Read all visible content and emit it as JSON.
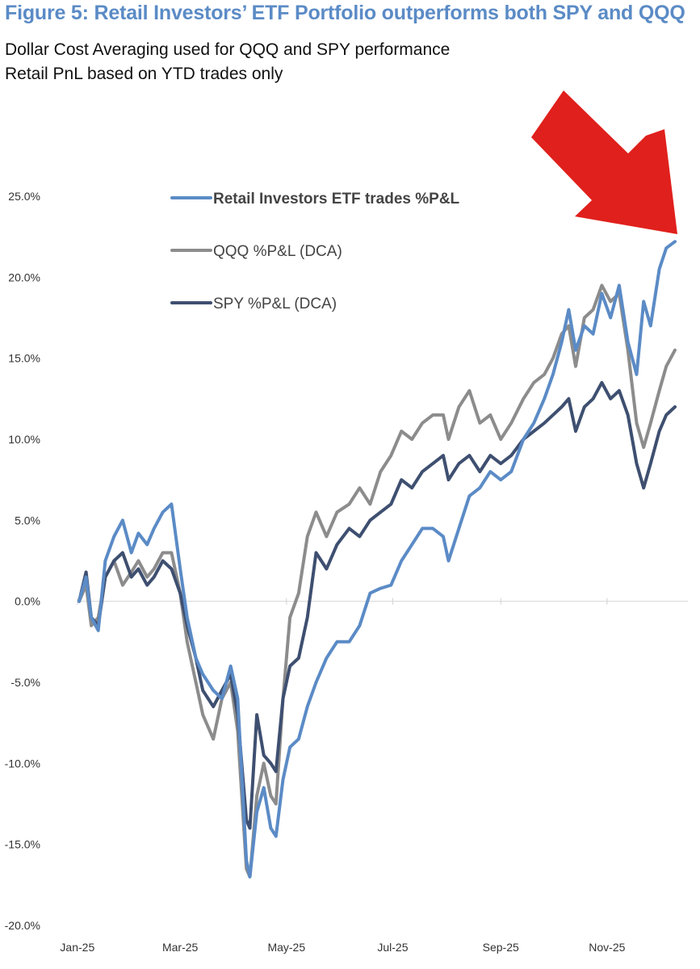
{
  "chart_data": {
    "type": "line",
    "title": "Figure 5: Retail Investors’ ETF Portfolio outperforms both SPY and QQQ",
    "subtitle": [
      "Dollar Cost Averaging used for QQQ and SPY performance",
      "Retail PnL based on YTD trades only"
    ],
    "xlabel": "",
    "ylabel": "",
    "x_ticks": [
      "Jan-25",
      "Mar-25",
      "May-25",
      "Jul-25",
      "Sep-25",
      "Nov-25"
    ],
    "y_ticks": [
      "25.0%",
      "20.0%",
      "15.0%",
      "10.0%",
      "5.0%",
      "0.0%",
      "-5.0%",
      "-10.0%",
      "-15.0%",
      "-20.0%"
    ],
    "ylim": [
      -20,
      25
    ],
    "xlim": [
      "2025-01-02",
      "2025-12-10"
    ],
    "legend_position": "top-left",
    "grid": false,
    "series": [
      {
        "name": "Retail Investors ETF trades %P&L",
        "color": "#5b8bc6",
        "points": [
          [
            "2025-01-02",
            0
          ],
          [
            "2025-01-06",
            1.5
          ],
          [
            "2025-01-09",
            -1.0
          ],
          [
            "2025-01-13",
            -1.8
          ],
          [
            "2025-01-17",
            2.5
          ],
          [
            "2025-01-22",
            4.0
          ],
          [
            "2025-01-27",
            5.0
          ],
          [
            "2025-02-01",
            3.0
          ],
          [
            "2025-02-05",
            4.2
          ],
          [
            "2025-02-10",
            3.5
          ],
          [
            "2025-02-14",
            4.5
          ],
          [
            "2025-02-19",
            5.5
          ],
          [
            "2025-02-24",
            6.0
          ],
          [
            "2025-03-01",
            2.0
          ],
          [
            "2025-03-05",
            -1.0
          ],
          [
            "2025-03-10",
            -3.5
          ],
          [
            "2025-03-14",
            -4.5
          ],
          [
            "2025-03-20",
            -5.5
          ],
          [
            "2025-03-25",
            -6.0
          ],
          [
            "2025-03-30",
            -4.0
          ],
          [
            "2025-04-03",
            -6.0
          ],
          [
            "2025-04-08",
            -16.0
          ],
          [
            "2025-04-10",
            -17.0
          ],
          [
            "2025-04-14",
            -13.0
          ],
          [
            "2025-04-18",
            -11.5
          ],
          [
            "2025-04-22",
            -14.0
          ],
          [
            "2025-04-25",
            -14.5
          ],
          [
            "2025-04-29",
            -11.0
          ],
          [
            "2025-05-03",
            -9.0
          ],
          [
            "2025-05-08",
            -8.5
          ],
          [
            "2025-05-13",
            -6.5
          ],
          [
            "2025-05-18",
            -5.0
          ],
          [
            "2025-05-24",
            -3.5
          ],
          [
            "2025-05-30",
            -2.5
          ],
          [
            "2025-06-06",
            -2.5
          ],
          [
            "2025-06-12",
            -1.5
          ],
          [
            "2025-06-18",
            0.5
          ],
          [
            "2025-06-24",
            0.8
          ],
          [
            "2025-06-30",
            1.0
          ],
          [
            "2025-07-06",
            2.5
          ],
          [
            "2025-07-12",
            3.5
          ],
          [
            "2025-07-18",
            4.5
          ],
          [
            "2025-07-24",
            4.5
          ],
          [
            "2025-07-30",
            4.0
          ],
          [
            "2025-08-02",
            2.5
          ],
          [
            "2025-08-08",
            4.5
          ],
          [
            "2025-08-14",
            6.5
          ],
          [
            "2025-08-20",
            7.0
          ],
          [
            "2025-08-26",
            8.0
          ],
          [
            "2025-09-01",
            7.5
          ],
          [
            "2025-09-07",
            8.0
          ],
          [
            "2025-09-14",
            10.0
          ],
          [
            "2025-09-20",
            11.0
          ],
          [
            "2025-09-26",
            12.5
          ],
          [
            "2025-10-01",
            14.0
          ],
          [
            "2025-10-06",
            16.0
          ],
          [
            "2025-10-10",
            18.0
          ],
          [
            "2025-10-14",
            15.5
          ],
          [
            "2025-10-19",
            17.0
          ],
          [
            "2025-10-24",
            16.5
          ],
          [
            "2025-10-29",
            19.0
          ],
          [
            "2025-11-03",
            17.5
          ],
          [
            "2025-11-08",
            19.5
          ],
          [
            "2025-11-13",
            16.0
          ],
          [
            "2025-11-18",
            14.0
          ],
          [
            "2025-11-22",
            18.5
          ],
          [
            "2025-11-26",
            17.0
          ],
          [
            "2025-12-01",
            20.5
          ],
          [
            "2025-12-05",
            21.8
          ],
          [
            "2025-12-10",
            22.2
          ]
        ]
      },
      {
        "name": "QQQ %P&L (DCA)",
        "color": "#8c8c8c",
        "points": [
          [
            "2025-01-02",
            0
          ],
          [
            "2025-01-06",
            1.0
          ],
          [
            "2025-01-09",
            -1.5
          ],
          [
            "2025-01-13",
            -1.0
          ],
          [
            "2025-01-17",
            1.5
          ],
          [
            "2025-01-22",
            2.5
          ],
          [
            "2025-01-27",
            1.0
          ],
          [
            "2025-02-01",
            1.8
          ],
          [
            "2025-02-05",
            2.5
          ],
          [
            "2025-02-10",
            1.5
          ],
          [
            "2025-02-14",
            2.0
          ],
          [
            "2025-02-19",
            3.0
          ],
          [
            "2025-02-24",
            3.0
          ],
          [
            "2025-03-01",
            0.5
          ],
          [
            "2025-03-05",
            -2.5
          ],
          [
            "2025-03-10",
            -5.0
          ],
          [
            "2025-03-14",
            -7.0
          ],
          [
            "2025-03-20",
            -8.5
          ],
          [
            "2025-03-25",
            -6.0
          ],
          [
            "2025-03-30",
            -5.0
          ],
          [
            "2025-04-03",
            -8.0
          ],
          [
            "2025-04-08",
            -16.5
          ],
          [
            "2025-04-10",
            -17.0
          ],
          [
            "2025-04-14",
            -12.0
          ],
          [
            "2025-04-18",
            -10.0
          ],
          [
            "2025-04-22",
            -12.0
          ],
          [
            "2025-04-25",
            -12.5
          ],
          [
            "2025-04-29",
            -6.0
          ],
          [
            "2025-05-03",
            -1.0
          ],
          [
            "2025-05-08",
            0.5
          ],
          [
            "2025-05-13",
            4.0
          ],
          [
            "2025-05-18",
            5.5
          ],
          [
            "2025-05-24",
            4.0
          ],
          [
            "2025-05-30",
            5.5
          ],
          [
            "2025-06-06",
            6.0
          ],
          [
            "2025-06-12",
            7.0
          ],
          [
            "2025-06-18",
            6.0
          ],
          [
            "2025-06-24",
            8.0
          ],
          [
            "2025-06-30",
            9.0
          ],
          [
            "2025-07-06",
            10.5
          ],
          [
            "2025-07-12",
            10.0
          ],
          [
            "2025-07-18",
            11.0
          ],
          [
            "2025-07-24",
            11.5
          ],
          [
            "2025-07-30",
            11.5
          ],
          [
            "2025-08-02",
            10.0
          ],
          [
            "2025-08-08",
            12.0
          ],
          [
            "2025-08-14",
            13.0
          ],
          [
            "2025-08-20",
            11.0
          ],
          [
            "2025-08-26",
            11.5
          ],
          [
            "2025-09-01",
            10.0
          ],
          [
            "2025-09-07",
            11.0
          ],
          [
            "2025-09-14",
            12.5
          ],
          [
            "2025-09-20",
            13.5
          ],
          [
            "2025-09-26",
            14.0
          ],
          [
            "2025-10-01",
            15.0
          ],
          [
            "2025-10-06",
            16.5
          ],
          [
            "2025-10-10",
            17.0
          ],
          [
            "2025-10-14",
            14.5
          ],
          [
            "2025-10-19",
            17.5
          ],
          [
            "2025-10-24",
            18.0
          ],
          [
            "2025-10-29",
            19.5
          ],
          [
            "2025-11-03",
            18.5
          ],
          [
            "2025-11-08",
            19.0
          ],
          [
            "2025-11-13",
            15.5
          ],
          [
            "2025-11-18",
            11.0
          ],
          [
            "2025-11-22",
            9.5
          ],
          [
            "2025-11-26",
            11.0
          ],
          [
            "2025-12-01",
            13.0
          ],
          [
            "2025-12-05",
            14.5
          ],
          [
            "2025-12-10",
            15.5
          ]
        ]
      },
      {
        "name": "SPY %P&L (DCA)",
        "color": "#3e4f70",
        "points": [
          [
            "2025-01-02",
            0
          ],
          [
            "2025-01-06",
            1.8
          ],
          [
            "2025-01-09",
            -1.0
          ],
          [
            "2025-01-13",
            -1.5
          ],
          [
            "2025-01-17",
            1.5
          ],
          [
            "2025-01-22",
            2.5
          ],
          [
            "2025-01-27",
            3.0
          ],
          [
            "2025-02-01",
            1.5
          ],
          [
            "2025-02-05",
            2.0
          ],
          [
            "2025-02-10",
            1.0
          ],
          [
            "2025-02-14",
            1.5
          ],
          [
            "2025-02-19",
            2.5
          ],
          [
            "2025-02-24",
            2.0
          ],
          [
            "2025-03-01",
            0.5
          ],
          [
            "2025-03-05",
            -1.5
          ],
          [
            "2025-03-10",
            -3.5
          ],
          [
            "2025-03-14",
            -5.5
          ],
          [
            "2025-03-20",
            -6.5
          ],
          [
            "2025-03-25",
            -5.5
          ],
          [
            "2025-03-30",
            -4.5
          ],
          [
            "2025-04-03",
            -7.0
          ],
          [
            "2025-04-08",
            -13.5
          ],
          [
            "2025-04-10",
            -14.0
          ],
          [
            "2025-04-14",
            -7.0
          ],
          [
            "2025-04-18",
            -9.5
          ],
          [
            "2025-04-22",
            -10.0
          ],
          [
            "2025-04-25",
            -10.5
          ],
          [
            "2025-04-29",
            -6.0
          ],
          [
            "2025-05-03",
            -4.0
          ],
          [
            "2025-05-08",
            -3.5
          ],
          [
            "2025-05-13",
            -1.0
          ],
          [
            "2025-05-18",
            3.0
          ],
          [
            "2025-05-24",
            2.0
          ],
          [
            "2025-05-30",
            3.5
          ],
          [
            "2025-06-06",
            4.5
          ],
          [
            "2025-06-12",
            4.0
          ],
          [
            "2025-06-18",
            5.0
          ],
          [
            "2025-06-24",
            5.5
          ],
          [
            "2025-06-30",
            6.0
          ],
          [
            "2025-07-06",
            7.5
          ],
          [
            "2025-07-12",
            7.0
          ],
          [
            "2025-07-18",
            8.0
          ],
          [
            "2025-07-24",
            8.5
          ],
          [
            "2025-07-30",
            9.0
          ],
          [
            "2025-08-02",
            7.5
          ],
          [
            "2025-08-08",
            8.5
          ],
          [
            "2025-08-14",
            9.0
          ],
          [
            "2025-08-20",
            8.0
          ],
          [
            "2025-08-26",
            9.0
          ],
          [
            "2025-09-01",
            8.5
          ],
          [
            "2025-09-07",
            9.0
          ],
          [
            "2025-09-14",
            10.0
          ],
          [
            "2025-09-20",
            10.5
          ],
          [
            "2025-09-26",
            11.0
          ],
          [
            "2025-10-01",
            11.5
          ],
          [
            "2025-10-06",
            12.0
          ],
          [
            "2025-10-10",
            12.5
          ],
          [
            "2025-10-14",
            10.5
          ],
          [
            "2025-10-19",
            12.0
          ],
          [
            "2025-10-24",
            12.5
          ],
          [
            "2025-10-29",
            13.5
          ],
          [
            "2025-11-03",
            12.5
          ],
          [
            "2025-11-08",
            13.0
          ],
          [
            "2025-11-13",
            11.5
          ],
          [
            "2025-11-18",
            8.5
          ],
          [
            "2025-11-22",
            7.0
          ],
          [
            "2025-11-26",
            8.5
          ],
          [
            "2025-12-01",
            10.5
          ],
          [
            "2025-12-05",
            11.5
          ],
          [
            "2025-12-10",
            12.0
          ]
        ]
      }
    ],
    "annotation": {
      "type": "arrow",
      "color": "#e0201c",
      "points_to": "right end of Retail series"
    }
  }
}
